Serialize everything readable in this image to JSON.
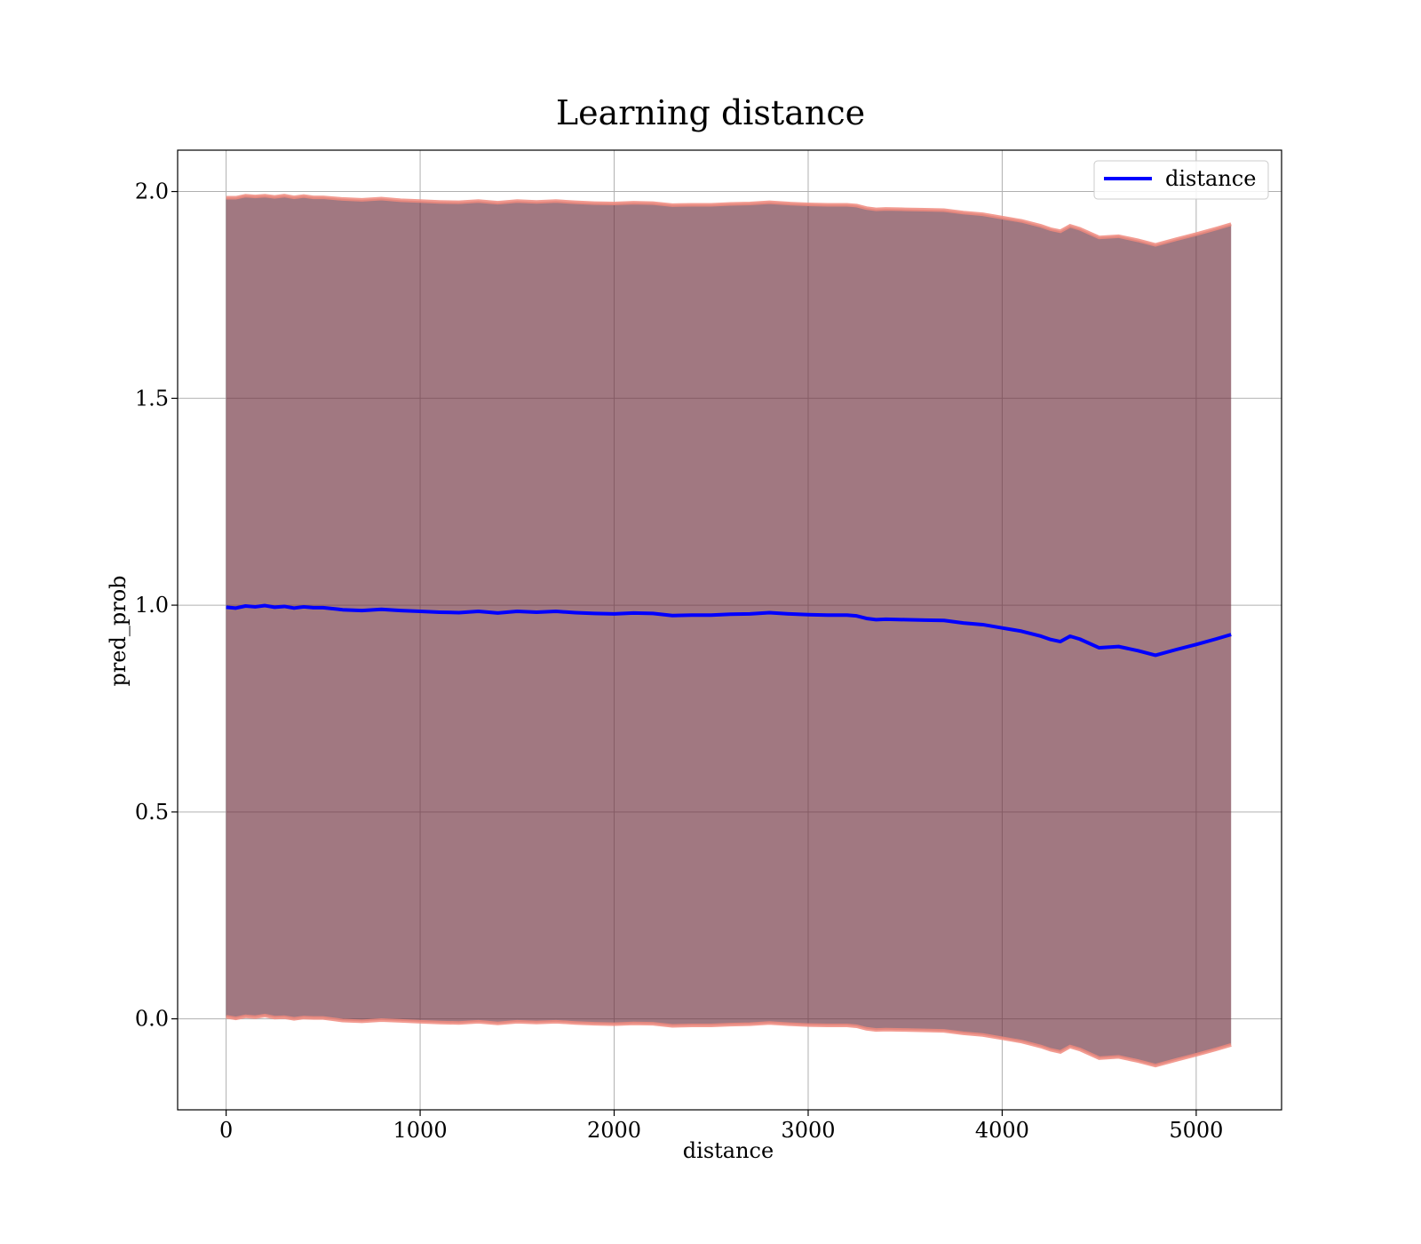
{
  "chart_data": {
    "type": "line",
    "title": "Learning distance",
    "xlabel": "distance",
    "ylabel": "pred_prob",
    "xlim": [
      -250,
      5440
    ],
    "ylim": [
      -0.22,
      2.1
    ],
    "grid": true,
    "legend_position": "upper right",
    "x_ticks": [
      0,
      1000,
      2000,
      3000,
      4000,
      5000
    ],
    "x_tick_labels": [
      "0",
      "1000",
      "2000",
      "3000",
      "4000",
      "5000"
    ],
    "y_ticks": [
      0.0,
      0.5,
      1.0,
      1.5,
      2.0
    ],
    "y_tick_labels": [
      "0.0",
      "0.5",
      "1.0",
      "1.5",
      "2.0"
    ],
    "colors": {
      "line": "#0000ff",
      "band_fill": "#6e2f3e",
      "band_edge": "#f08a7e",
      "grid": "#b0b0b0",
      "legend_border": "#cccccc"
    },
    "series": [
      {
        "name": "distance",
        "x": [
          0,
          50,
          100,
          150,
          200,
          250,
          300,
          350,
          400,
          450,
          500,
          600,
          700,
          800,
          900,
          1000,
          1100,
          1200,
          1300,
          1400,
          1500,
          1600,
          1700,
          1800,
          1900,
          2000,
          2100,
          2200,
          2300,
          2400,
          2500,
          2600,
          2700,
          2800,
          2900,
          3000,
          3100,
          3200,
          3250,
          3300,
          3350,
          3400,
          3500,
          3600,
          3700,
          3800,
          3900,
          4000,
          4100,
          4200,
          4250,
          4300,
          4350,
          4400,
          4500,
          4600,
          4700,
          4790,
          4900,
          5000,
          5100,
          5180
        ],
        "y": [
          0.995,
          0.993,
          0.998,
          0.996,
          0.999,
          0.995,
          0.997,
          0.993,
          0.996,
          0.994,
          0.994,
          0.989,
          0.987,
          0.99,
          0.987,
          0.985,
          0.983,
          0.982,
          0.985,
          0.981,
          0.985,
          0.983,
          0.985,
          0.982,
          0.98,
          0.979,
          0.981,
          0.98,
          0.975,
          0.976,
          0.976,
          0.978,
          0.979,
          0.982,
          0.979,
          0.977,
          0.976,
          0.976,
          0.974,
          0.968,
          0.965,
          0.966,
          0.965,
          0.964,
          0.963,
          0.957,
          0.953,
          0.945,
          0.937,
          0.925,
          0.917,
          0.912,
          0.925,
          0.918,
          0.897,
          0.9,
          0.89,
          0.879,
          0.893,
          0.905,
          0.918,
          0.929
        ],
        "band_upper": [
          1.985,
          1.985,
          1.99,
          1.988,
          1.99,
          1.987,
          1.99,
          1.986,
          1.989,
          1.986,
          1.986,
          1.982,
          1.98,
          1.983,
          1.979,
          1.977,
          1.975,
          1.974,
          1.977,
          1.973,
          1.977,
          1.975,
          1.977,
          1.974,
          1.972,
          1.971,
          1.973,
          1.972,
          1.967,
          1.968,
          1.968,
          1.97,
          1.971,
          1.974,
          1.971,
          1.969,
          1.968,
          1.968,
          1.966,
          1.96,
          1.957,
          1.958,
          1.957,
          1.956,
          1.955,
          1.949,
          1.945,
          1.937,
          1.929,
          1.917,
          1.909,
          1.904,
          1.917,
          1.91,
          1.889,
          1.892,
          1.882,
          1.871,
          1.885,
          1.897,
          1.91,
          1.921
        ],
        "band_lower": [
          0.005,
          0.001,
          0.006,
          0.004,
          0.008,
          0.003,
          0.004,
          0.0,
          0.003,
          0.002,
          0.002,
          -0.004,
          -0.006,
          -0.003,
          -0.005,
          -0.007,
          -0.009,
          -0.01,
          -0.007,
          -0.011,
          -0.007,
          -0.009,
          -0.007,
          -0.01,
          -0.012,
          -0.013,
          -0.011,
          -0.012,
          -0.017,
          -0.016,
          -0.016,
          -0.014,
          -0.013,
          -0.01,
          -0.013,
          -0.015,
          -0.016,
          -0.016,
          -0.018,
          -0.024,
          -0.027,
          -0.026,
          -0.027,
          -0.028,
          -0.029,
          -0.035,
          -0.039,
          -0.047,
          -0.055,
          -0.067,
          -0.075,
          -0.08,
          -0.067,
          -0.074,
          -0.095,
          -0.092,
          -0.102,
          -0.113,
          -0.099,
          -0.087,
          -0.074,
          -0.063
        ]
      }
    ]
  }
}
